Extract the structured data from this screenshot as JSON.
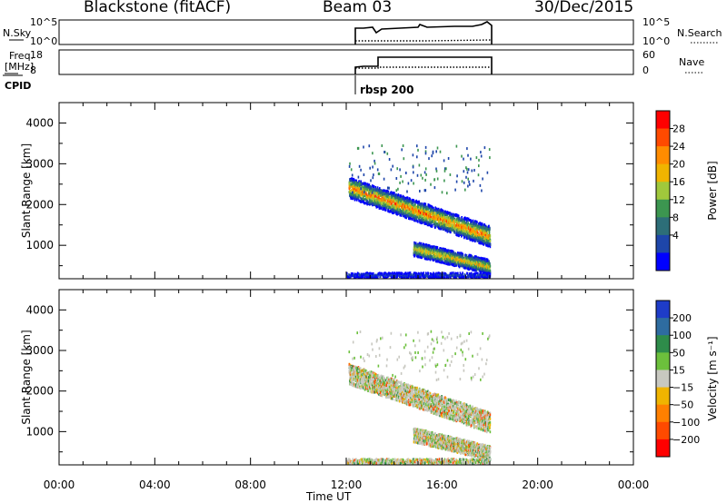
{
  "header": {
    "station": "Blackstone (fitACF)",
    "beam": "Beam 03",
    "date": "30/Dec/2015"
  },
  "strip_nsky": {
    "left_label": "N.Sky",
    "left_ticks": [
      "10^5",
      "10^0"
    ],
    "right_ticks": [
      "10^5",
      "10^0"
    ],
    "right_label": "N.Search"
  },
  "strip_freq": {
    "left_label_line1": "Freq.",
    "left_label_line2": "[MHz]",
    "left_ticks": [
      "18",
      "8"
    ],
    "right_ticks": [
      "60",
      "0"
    ],
    "right_label": "Nave"
  },
  "cpid": {
    "label": "CPID",
    "value": "rbsp 200"
  },
  "chart_data": [
    {
      "type": "heatmap",
      "name": "power-panel",
      "ylabel": "Slant Range [km]",
      "yticks": [
        1000,
        2000,
        3000,
        4000
      ],
      "ylim": [
        180,
        4500
      ],
      "xlim_hours": [
        0,
        24
      ],
      "colorbar_label": "Power [dB]",
      "colorbar_ticks": [
        "28",
        "24",
        "20",
        "16",
        "12",
        "8",
        "4"
      ],
      "colorbar_colors": [
        "#ff0000",
        "#ff4a00",
        "#ff8c00",
        "#f0b400",
        "#a0c83c",
        "#3c9650",
        "#2d6e78",
        "#1e46aa",
        "#0000ff"
      ],
      "data_window_hours": [
        12.0,
        18.0
      ],
      "echo_bands": [
        {
          "from_hour": 12.1,
          "to_hour": 18.0,
          "range_start_km": 2400,
          "range_end_km": 1200,
          "width_km": 500,
          "peak_db": 26
        },
        {
          "from_hour": 14.8,
          "to_hour": 18.0,
          "range_start_km": 900,
          "range_end_km": 450,
          "width_km": 350,
          "peak_db": 22
        },
        {
          "from_hour": 12.0,
          "to_hour": 18.0,
          "range_start_km": 250,
          "range_end_km": 250,
          "width_km": 120,
          "peak_db": 6
        }
      ]
    },
    {
      "type": "heatmap",
      "name": "velocity-panel",
      "ylabel": "Slant Range [km]",
      "yticks": [
        1000,
        2000,
        3000,
        4000
      ],
      "ylim": [
        180,
        4500
      ],
      "xlim_hours": [
        0,
        24
      ],
      "colorbar_label": "Velocity [m s⁻¹]",
      "colorbar_ticks": [
        "200",
        "100",
        "50",
        "15",
        "−15",
        "−50",
        "−100",
        "−200"
      ],
      "colorbar_colors": [
        "#1e3cc8",
        "#2e6ca0",
        "#2e8c4a",
        "#6cc03c",
        "#c8c8c0",
        "#f0b400",
        "#ff8000",
        "#ff4a00",
        "#ff0000"
      ],
      "dominant_velocity": "−15 to 15"
    }
  ],
  "x_axis": {
    "label": "Time UT",
    "ticks": [
      "00:00",
      "04:00",
      "08:00",
      "12:00",
      "16:00",
      "20:00",
      "00:00"
    ]
  }
}
